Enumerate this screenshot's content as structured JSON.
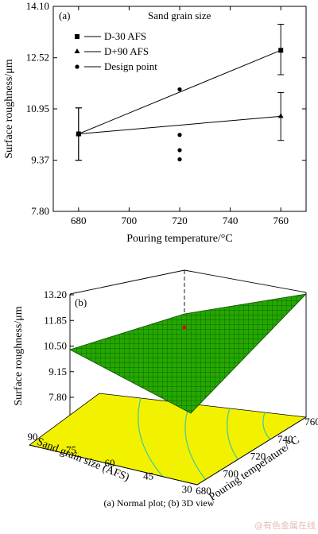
{
  "chart_data": [
    {
      "type": "line",
      "panel_label": "(a)",
      "legend_title": "Sand grain size",
      "xlabel": "Pouring temperature/°C",
      "ylabel": "Surface roughness/μm",
      "xlim": [
        670,
        770
      ],
      "ylim": [
        7.8,
        14.1
      ],
      "x_ticks": [
        "680",
        "700",
        "720",
        "740",
        "760"
      ],
      "y_ticks": [
        "7.80",
        "9.37",
        "10.95",
        "12.52",
        "14.10"
      ],
      "legend_position": "top-left",
      "series": [
        {
          "name": "D-30 AFS",
          "marker": "square",
          "x": [
            680,
            760
          ],
          "y": [
            10.18,
            12.75
          ],
          "error_bars": [
            [
              9.37,
              10.98
            ],
            [
              12.0,
              13.55
            ]
          ]
        },
        {
          "name": "D+90 AFS",
          "marker": "triangle",
          "x": [
            680,
            760
          ],
          "y": [
            10.18,
            10.72
          ],
          "error_bars": [
            [
              9.37,
              10.98
            ],
            [
              9.98,
              11.45
            ]
          ]
        },
        {
          "name": "Design point",
          "marker": "circle",
          "x": [
            720,
            720,
            720,
            720
          ],
          "y": [
            11.55,
            10.15,
            9.68,
            9.4
          ]
        }
      ]
    },
    {
      "type": "surface3d",
      "panel_label": "(b)",
      "zlabel": "Surface roughness/μm",
      "z_ticks": [
        "7.80",
        "9.15",
        "10.50",
        "11.85",
        "13.20"
      ],
      "xlabel": "Pouring temperature/°C",
      "x_ticks": [
        "680",
        "700",
        "720",
        "740",
        "760"
      ],
      "ylabel": "Sand grain size (AFS)",
      "y_ticks": [
        "30",
        "45",
        "60",
        "75",
        "90"
      ],
      "zlim": [
        7.8,
        13.2
      ],
      "surface_color": "#22a300",
      "contour_floor_color": "#f2f200",
      "contour_line_color": "#4ec98f",
      "design_point": {
        "temperature": 720,
        "grain_size": 60,
        "roughness": 10.9
      }
    }
  ],
  "caption": "(a) Normal plot; (b) 3D view",
  "watermark": "@有色金属在线"
}
